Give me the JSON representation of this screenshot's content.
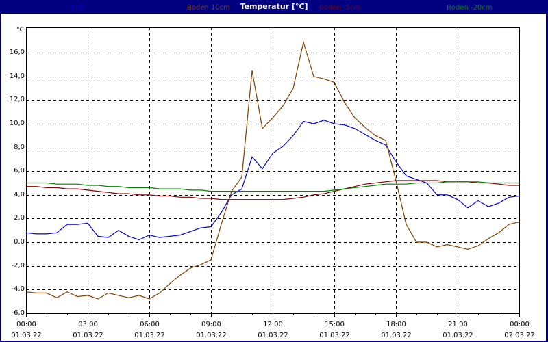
{
  "window": {
    "title": "Temperatur [°C]"
  },
  "legend": [
    {
      "label": "Luft",
      "color": "#0000cc"
    },
    {
      "label": "Boden 10cm",
      "color": "#804000"
    },
    {
      "label": "Boden -5cm",
      "color": "#800000"
    },
    {
      "label": "Boden -20cm",
      "color": "#008000"
    }
  ],
  "axis": {
    "y_unit": "°C",
    "y_ticks": [
      "16,0",
      "14,0",
      "12,0",
      "10,0",
      "8,0",
      "6,0",
      "4,0",
      "2,0",
      "0,0",
      "-2,0",
      "-4,0",
      "-6,0"
    ],
    "x_ticks": [
      {
        "time": "00:00",
        "date": "01.03.22"
      },
      {
        "time": "03:00",
        "date": "01.03.22"
      },
      {
        "time": "06:00",
        "date": "01.03.22"
      },
      {
        "time": "09:00",
        "date": "01.03.22"
      },
      {
        "time": "12:00",
        "date": "01.03.22"
      },
      {
        "time": "15:00",
        "date": "01.03.22"
      },
      {
        "time": "18:00",
        "date": "01.03.22"
      },
      {
        "time": "21:00",
        "date": "01.03.22"
      },
      {
        "time": "00:00",
        "date": "02.03.22"
      }
    ]
  },
  "chart_data": {
    "type": "line",
    "title": "Temperatur [°C]",
    "xlabel": "",
    "ylabel": "°C",
    "ylim": [
      -6,
      18
    ],
    "grid": true,
    "legend_position": "top",
    "x_hours": [
      0,
      0.5,
      1,
      1.5,
      2,
      2.5,
      3,
      3.5,
      4,
      4.5,
      5,
      5.5,
      6,
      6.5,
      7,
      7.5,
      8,
      8.5,
      9,
      9.5,
      10,
      10.5,
      11,
      11.5,
      12,
      12.5,
      13,
      13.5,
      14,
      14.5,
      15,
      15.5,
      16,
      16.5,
      17,
      17.5,
      18,
      18.5,
      19,
      19.5,
      20,
      20.5,
      21,
      21.5,
      22,
      22.5,
      23,
      23.5,
      24
    ],
    "series": [
      {
        "name": "Luft",
        "color": "#0000cc",
        "values": [
          0.8,
          0.7,
          0.7,
          0.8,
          1.5,
          1.5,
          1.6,
          0.5,
          0.4,
          1.0,
          0.5,
          0.2,
          0.6,
          0.4,
          0.5,
          0.6,
          0.9,
          1.2,
          1.3,
          2.5,
          4.0,
          4.5,
          7.2,
          6.2,
          7.5,
          8.1,
          9.0,
          10.2,
          10.0,
          10.3,
          10.0,
          9.9,
          9.6,
          9.1,
          8.6,
          8.2,
          6.8,
          5.6,
          5.3,
          5.0,
          4.0,
          4.0,
          3.6,
          2.9,
          3.5,
          3.0,
          3.3,
          3.8,
          3.9
        ]
      },
      {
        "name": "Boden 10cm",
        "color": "#804000",
        "values": [
          -4.2,
          -4.3,
          -4.3,
          -4.7,
          -4.2,
          -4.6,
          -4.5,
          -4.8,
          -4.3,
          -4.5,
          -4.7,
          -4.5,
          -4.8,
          -4.3,
          -3.5,
          -2.8,
          -2.2,
          -1.9,
          -1.5,
          1.5,
          4.3,
          5.5,
          14.5,
          9.6,
          10.5,
          11.5,
          13.0,
          16.9,
          14.0,
          13.8,
          13.5,
          11.8,
          10.5,
          9.7,
          9.0,
          8.6,
          5.2,
          1.5,
          0.0,
          0.0,
          -0.4,
          -0.2,
          -0.4,
          -0.6,
          -0.3,
          0.3,
          0.8,
          1.5,
          1.7
        ]
      },
      {
        "name": "Boden -5cm",
        "color": "#800000",
        "values": [
          4.7,
          4.7,
          4.6,
          4.6,
          4.5,
          4.5,
          4.4,
          4.3,
          4.2,
          4.1,
          4.1,
          4.0,
          4.0,
          3.9,
          3.9,
          3.8,
          3.8,
          3.7,
          3.7,
          3.6,
          3.6,
          3.6,
          3.6,
          3.6,
          3.6,
          3.6,
          3.7,
          3.8,
          4.0,
          4.1,
          4.3,
          4.5,
          4.7,
          4.9,
          5.0,
          5.1,
          5.2,
          5.2,
          5.2,
          5.2,
          5.2,
          5.1,
          5.1,
          5.1,
          5.0,
          5.0,
          4.9,
          4.8,
          4.8
        ]
      },
      {
        "name": "Boden -20cm",
        "color": "#008000",
        "values": [
          5.0,
          5.0,
          5.0,
          4.9,
          4.9,
          4.9,
          4.8,
          4.8,
          4.7,
          4.7,
          4.6,
          4.6,
          4.6,
          4.5,
          4.5,
          4.5,
          4.4,
          4.4,
          4.3,
          4.3,
          4.3,
          4.3,
          4.3,
          4.3,
          4.3,
          4.3,
          4.3,
          4.3,
          4.3,
          4.3,
          4.4,
          4.5,
          4.6,
          4.7,
          4.8,
          4.9,
          4.9,
          4.9,
          5.0,
          5.0,
          5.0,
          5.1,
          5.1,
          5.1,
          5.1,
          5.0,
          5.0,
          5.0,
          5.0
        ]
      }
    ]
  }
}
